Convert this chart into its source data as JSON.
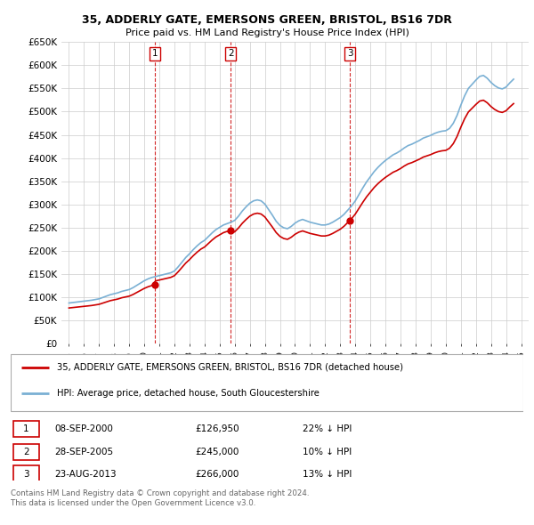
{
  "title1": "35, ADDERLY GATE, EMERSONS GREEN, BRISTOL, BS16 7DR",
  "title2": "Price paid vs. HM Land Registry's House Price Index (HPI)",
  "ylabel_ticks": [
    "£0",
    "£50K",
    "£100K",
    "£150K",
    "£200K",
    "£250K",
    "£300K",
    "£350K",
    "£400K",
    "£450K",
    "£500K",
    "£550K",
    "£600K",
    "£650K"
  ],
  "ylabel_values": [
    0,
    50000,
    100000,
    150000,
    200000,
    250000,
    300000,
    350000,
    400000,
    450000,
    500000,
    550000,
    600000,
    650000
  ],
  "xlim": [
    1994.5,
    2025.5
  ],
  "ylim": [
    0,
    650000
  ],
  "hpi_years": [
    1995,
    1995.25,
    1995.5,
    1995.75,
    1996,
    1996.25,
    1996.5,
    1996.75,
    1997,
    1997.25,
    1997.5,
    1997.75,
    1998,
    1998.25,
    1998.5,
    1998.75,
    1999,
    1999.25,
    1999.5,
    1999.75,
    2000,
    2000.25,
    2000.5,
    2000.75,
    2001,
    2001.25,
    2001.5,
    2001.75,
    2002,
    2002.25,
    2002.5,
    2002.75,
    2003,
    2003.25,
    2003.5,
    2003.75,
    2004,
    2004.25,
    2004.5,
    2004.75,
    2005,
    2005.25,
    2005.5,
    2005.75,
    2006,
    2006.25,
    2006.5,
    2006.75,
    2007,
    2007.25,
    2007.5,
    2007.75,
    2008,
    2008.25,
    2008.5,
    2008.75,
    2009,
    2009.25,
    2009.5,
    2009.75,
    2010,
    2010.25,
    2010.5,
    2010.75,
    2011,
    2011.25,
    2011.5,
    2011.75,
    2012,
    2012.25,
    2012.5,
    2012.75,
    2013,
    2013.25,
    2013.5,
    2013.75,
    2014,
    2014.25,
    2014.5,
    2014.75,
    2015,
    2015.25,
    2015.5,
    2015.75,
    2016,
    2016.25,
    2016.5,
    2016.75,
    2017,
    2017.25,
    2017.5,
    2017.75,
    2018,
    2018.25,
    2018.5,
    2018.75,
    2019,
    2019.25,
    2019.5,
    2019.75,
    2020,
    2020.25,
    2020.5,
    2020.75,
    2021,
    2021.25,
    2021.5,
    2021.75,
    2022,
    2022.25,
    2022.5,
    2022.75,
    2023,
    2023.25,
    2023.5,
    2023.75,
    2024,
    2024.25,
    2024.5
  ],
  "hpi_values": [
    88000,
    89000,
    90000,
    91000,
    92000,
    93000,
    94000,
    95500,
    97000,
    100000,
    103000,
    106000,
    108000,
    110000,
    113000,
    115000,
    117000,
    121000,
    126000,
    131000,
    136000,
    140000,
    143000,
    145000,
    147000,
    149000,
    151000,
    153000,
    157000,
    166000,
    176000,
    186000,
    194000,
    203000,
    211000,
    218000,
    223000,
    231000,
    239000,
    246000,
    251000,
    256000,
    259000,
    262000,
    266000,
    275000,
    286000,
    295000,
    303000,
    308000,
    310000,
    308000,
    301000,
    289000,
    277000,
    264000,
    255000,
    250000,
    248000,
    253000,
    260000,
    265000,
    268000,
    265000,
    262000,
    260000,
    258000,
    256000,
    256000,
    258000,
    262000,
    267000,
    272000,
    279000,
    288000,
    297000,
    308000,
    322000,
    336000,
    349000,
    360000,
    371000,
    380000,
    388000,
    395000,
    401000,
    407000,
    411000,
    416000,
    422000,
    427000,
    430000,
    434000,
    438000,
    443000,
    446000,
    449000,
    453000,
    456000,
    458000,
    459000,
    464000,
    475000,
    492000,
    514000,
    534000,
    550000,
    559000,
    568000,
    576000,
    578000,
    572000,
    563000,
    556000,
    551000,
    549000,
    553000,
    562000,
    570000
  ],
  "price_paid_years": [
    2000.69,
    2005.74,
    2013.64
  ],
  "price_paid_values": [
    126950,
    245000,
    266000
  ],
  "transaction_labels": [
    "1",
    "2",
    "3"
  ],
  "transaction_dates": [
    "08-SEP-2000",
    "28-SEP-2005",
    "23-AUG-2013"
  ],
  "transaction_prices": [
    "£126,950",
    "£245,000",
    "£266,000"
  ],
  "transaction_hpi": [
    "22% ↓ HPI",
    "10% ↓ HPI",
    "13% ↓ HPI"
  ],
  "red_line_color": "#cc0000",
  "blue_line_color": "#7ab0d4",
  "grid_color": "#cccccc",
  "background_color": "#ffffff",
  "legend_label_red": "35, ADDERLY GATE, EMERSONS GREEN, BRISTOL, BS16 7DR (detached house)",
  "legend_label_blue": "HPI: Average price, detached house, South Gloucestershire",
  "footer1": "Contains HM Land Registry data © Crown copyright and database right 2024.",
  "footer2": "This data is licensed under the Open Government Licence v3.0."
}
